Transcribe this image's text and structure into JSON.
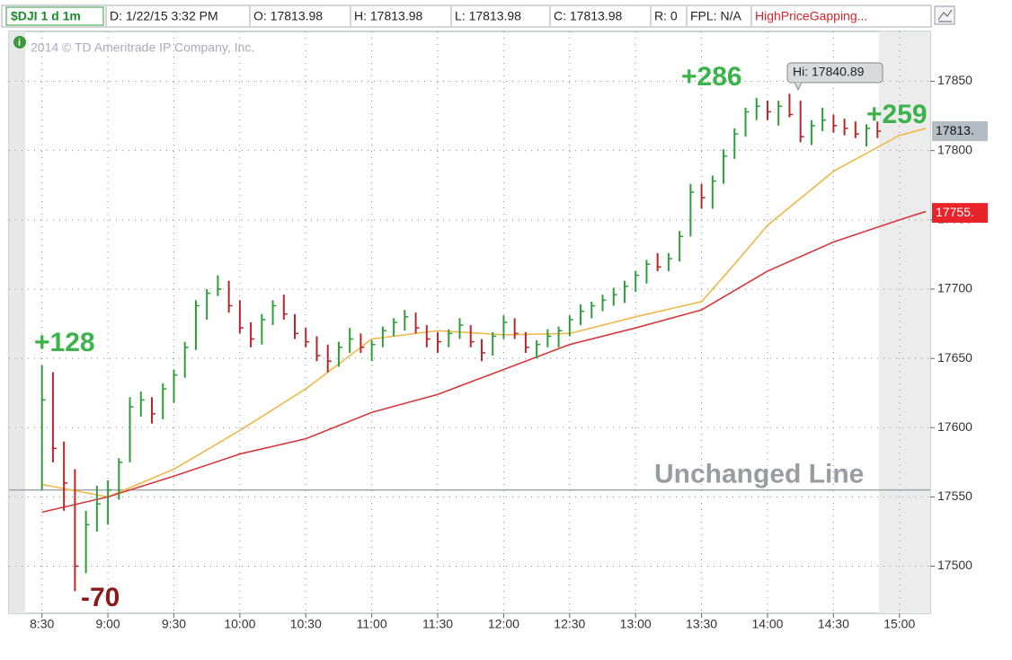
{
  "header": {
    "symbol": "$DJI 1 d 1m",
    "fields": [
      "D: 1/22/15 3:32 PM",
      "O: 17813.98",
      "H: 17813.98",
      "L: 17813.98",
      "C: 17813.98",
      "R: 0",
      "FPL: N/A"
    ],
    "study": "HighPriceGapping..."
  },
  "watermark": "2014 © TD Ameritrade IP Company, Inc.",
  "chart_data": {
    "type": "ohlc",
    "x": [
      510,
      515,
      520,
      525,
      530,
      535,
      540,
      545,
      550,
      555,
      560,
      565,
      570,
      575,
      580,
      585,
      590,
      595,
      600,
      605,
      610,
      615,
      620,
      625,
      630,
      635,
      640,
      645,
      650,
      655,
      660,
      665,
      670,
      675,
      680,
      685,
      690,
      695,
      700,
      705,
      710,
      715,
      720,
      725,
      730,
      735,
      740,
      745,
      750,
      755,
      760,
      765,
      770,
      775,
      780,
      785,
      790,
      795,
      800,
      805,
      810,
      815,
      820,
      825,
      830,
      835,
      840,
      845,
      850,
      855,
      860,
      865,
      870,
      875,
      880,
      885,
      890
    ],
    "high": [
      17645,
      17640,
      17590,
      17570,
      17540,
      17558,
      17562,
      17578,
      17622,
      17626,
      17622,
      17632,
      17642,
      17662,
      17692,
      17700,
      17710,
      17706,
      17692,
      17676,
      17682,
      17692,
      17696,
      17682,
      17672,
      17666,
      17660,
      17662,
      17672,
      17668,
      17663,
      17673,
      17679,
      17685,
      17683,
      17674,
      17669,
      17671,
      17679,
      17674,
      17664,
      17669,
      17681,
      17679,
      17669,
      17663,
      17671,
      17673,
      17681,
      17689,
      17691,
      17696,
      17701,
      17706,
      17713,
      17721,
      17726,
      17726,
      17742,
      17776,
      17776,
      17782,
      17801,
      17816,
      17831,
      17838,
      17836,
      17836,
      17841,
      17836,
      17822,
      17831,
      17826,
      17823,
      17821,
      17819,
      17821
    ],
    "low": [
      17555,
      17575,
      17540,
      17482,
      17495,
      17525,
      17530,
      17548,
      17575,
      17608,
      17603,
      17606,
      17618,
      17636,
      17656,
      17678,
      17695,
      17683,
      17668,
      17658,
      17660,
      17674,
      17678,
      17664,
      17658,
      17648,
      17640,
      17644,
      17654,
      17654,
      17648,
      17658,
      17666,
      17670,
      17668,
      17658,
      17654,
      17658,
      17664,
      17658,
      17648,
      17652,
      17664,
      17664,
      17654,
      17650,
      17658,
      17658,
      17666,
      17674,
      17679,
      17684,
      17688,
      17690,
      17698,
      17704,
      17713,
      17713,
      17720,
      17738,
      17758,
      17758,
      17776,
      17794,
      17810,
      17822,
      17822,
      17818,
      17824,
      17806,
      17804,
      17814,
      17813,
      17811,
      17809,
      17803,
      17809
    ],
    "close": [
      17620,
      17585,
      17560,
      17500,
      17530,
      17545,
      17555,
      17575,
      17615,
      17620,
      17610,
      17628,
      17638,
      17658,
      17688,
      17697,
      17700,
      17688,
      17672,
      17664,
      17678,
      17688,
      17682,
      17668,
      17662,
      17652,
      17648,
      17658,
      17664,
      17658,
      17660,
      17670,
      17676,
      17680,
      17672,
      17664,
      17662,
      17668,
      17674,
      17662,
      17654,
      17666,
      17676,
      17668,
      17658,
      17660,
      17666,
      17670,
      17678,
      17684,
      17688,
      17692,
      17696,
      17702,
      17710,
      17718,
      17716,
      17722,
      17738,
      17770,
      17766,
      17778,
      17796,
      17812,
      17828,
      17832,
      17828,
      17832,
      17826,
      17810,
      17818,
      17822,
      17818,
      17816,
      17812,
      17816,
      17814
    ],
    "up_color": "#2e9e3a",
    "down_color": "#b8262a",
    "lines": [
      {
        "color": "#f0b84a",
        "x": [
          510,
          540,
          570,
          600,
          630,
          660,
          690,
          720,
          750,
          780,
          810,
          825,
          840,
          870,
          900,
          912
        ],
        "values": [
          17559,
          17550,
          17570,
          17598,
          17628,
          17664,
          17670,
          17667,
          17668,
          17680,
          17691,
          17718,
          17746,
          17785,
          17811,
          17816
        ]
      },
      {
        "color": "#d8383a",
        "x": [
          510,
          540,
          570,
          600,
          630,
          660,
          690,
          720,
          750,
          780,
          810,
          840,
          870,
          900,
          912
        ],
        "values": [
          17539,
          17550,
          17565,
          17581,
          17592,
          17611,
          17624,
          17642,
          17660,
          17672,
          17685,
          17713,
          17734,
          17750,
          17756
        ]
      }
    ],
    "reference_line": {
      "value": 17555,
      "label": "Unchanged Line"
    },
    "annotations": [
      {
        "text": "+128",
        "color": "#3cb34a"
      },
      {
        "text": "-70",
        "color": "#8b1a1a"
      },
      {
        "text": "+286",
        "color": "#3cb34a"
      },
      {
        "text": "+259",
        "color": "#3cb34a"
      }
    ],
    "high_callout": "Hi: 17840.89",
    "price_tags": [
      {
        "value": 17813.98,
        "label": "17813.",
        "color": "#b4bcc4"
      },
      {
        "value": 17755,
        "label": "17755.",
        "color": "#e8242a"
      }
    ],
    "xlim": [
      495,
      914
    ],
    "ylim": [
      17466,
      17886
    ],
    "xticks": [
      {
        "value": 510,
        "label": "8:30"
      },
      {
        "value": 540,
        "label": "9:00"
      },
      {
        "value": 570,
        "label": "9:30"
      },
      {
        "value": 600,
        "label": "10:00"
      },
      {
        "value": 630,
        "label": "10:30"
      },
      {
        "value": 660,
        "label": "11:00"
      },
      {
        "value": 690,
        "label": "11:30"
      },
      {
        "value": 720,
        "label": "12:00"
      },
      {
        "value": 750,
        "label": "12:30"
      },
      {
        "value": 780,
        "label": "13:00"
      },
      {
        "value": 810,
        "label": "13:30"
      },
      {
        "value": 840,
        "label": "14:00"
      },
      {
        "value": 870,
        "label": "14:30"
      },
      {
        "value": 900,
        "label": "15:00"
      }
    ],
    "yticks": [
      17500,
      17550,
      17600,
      17650,
      17700,
      17750,
      17800,
      17850
    ],
    "grid": true
  }
}
